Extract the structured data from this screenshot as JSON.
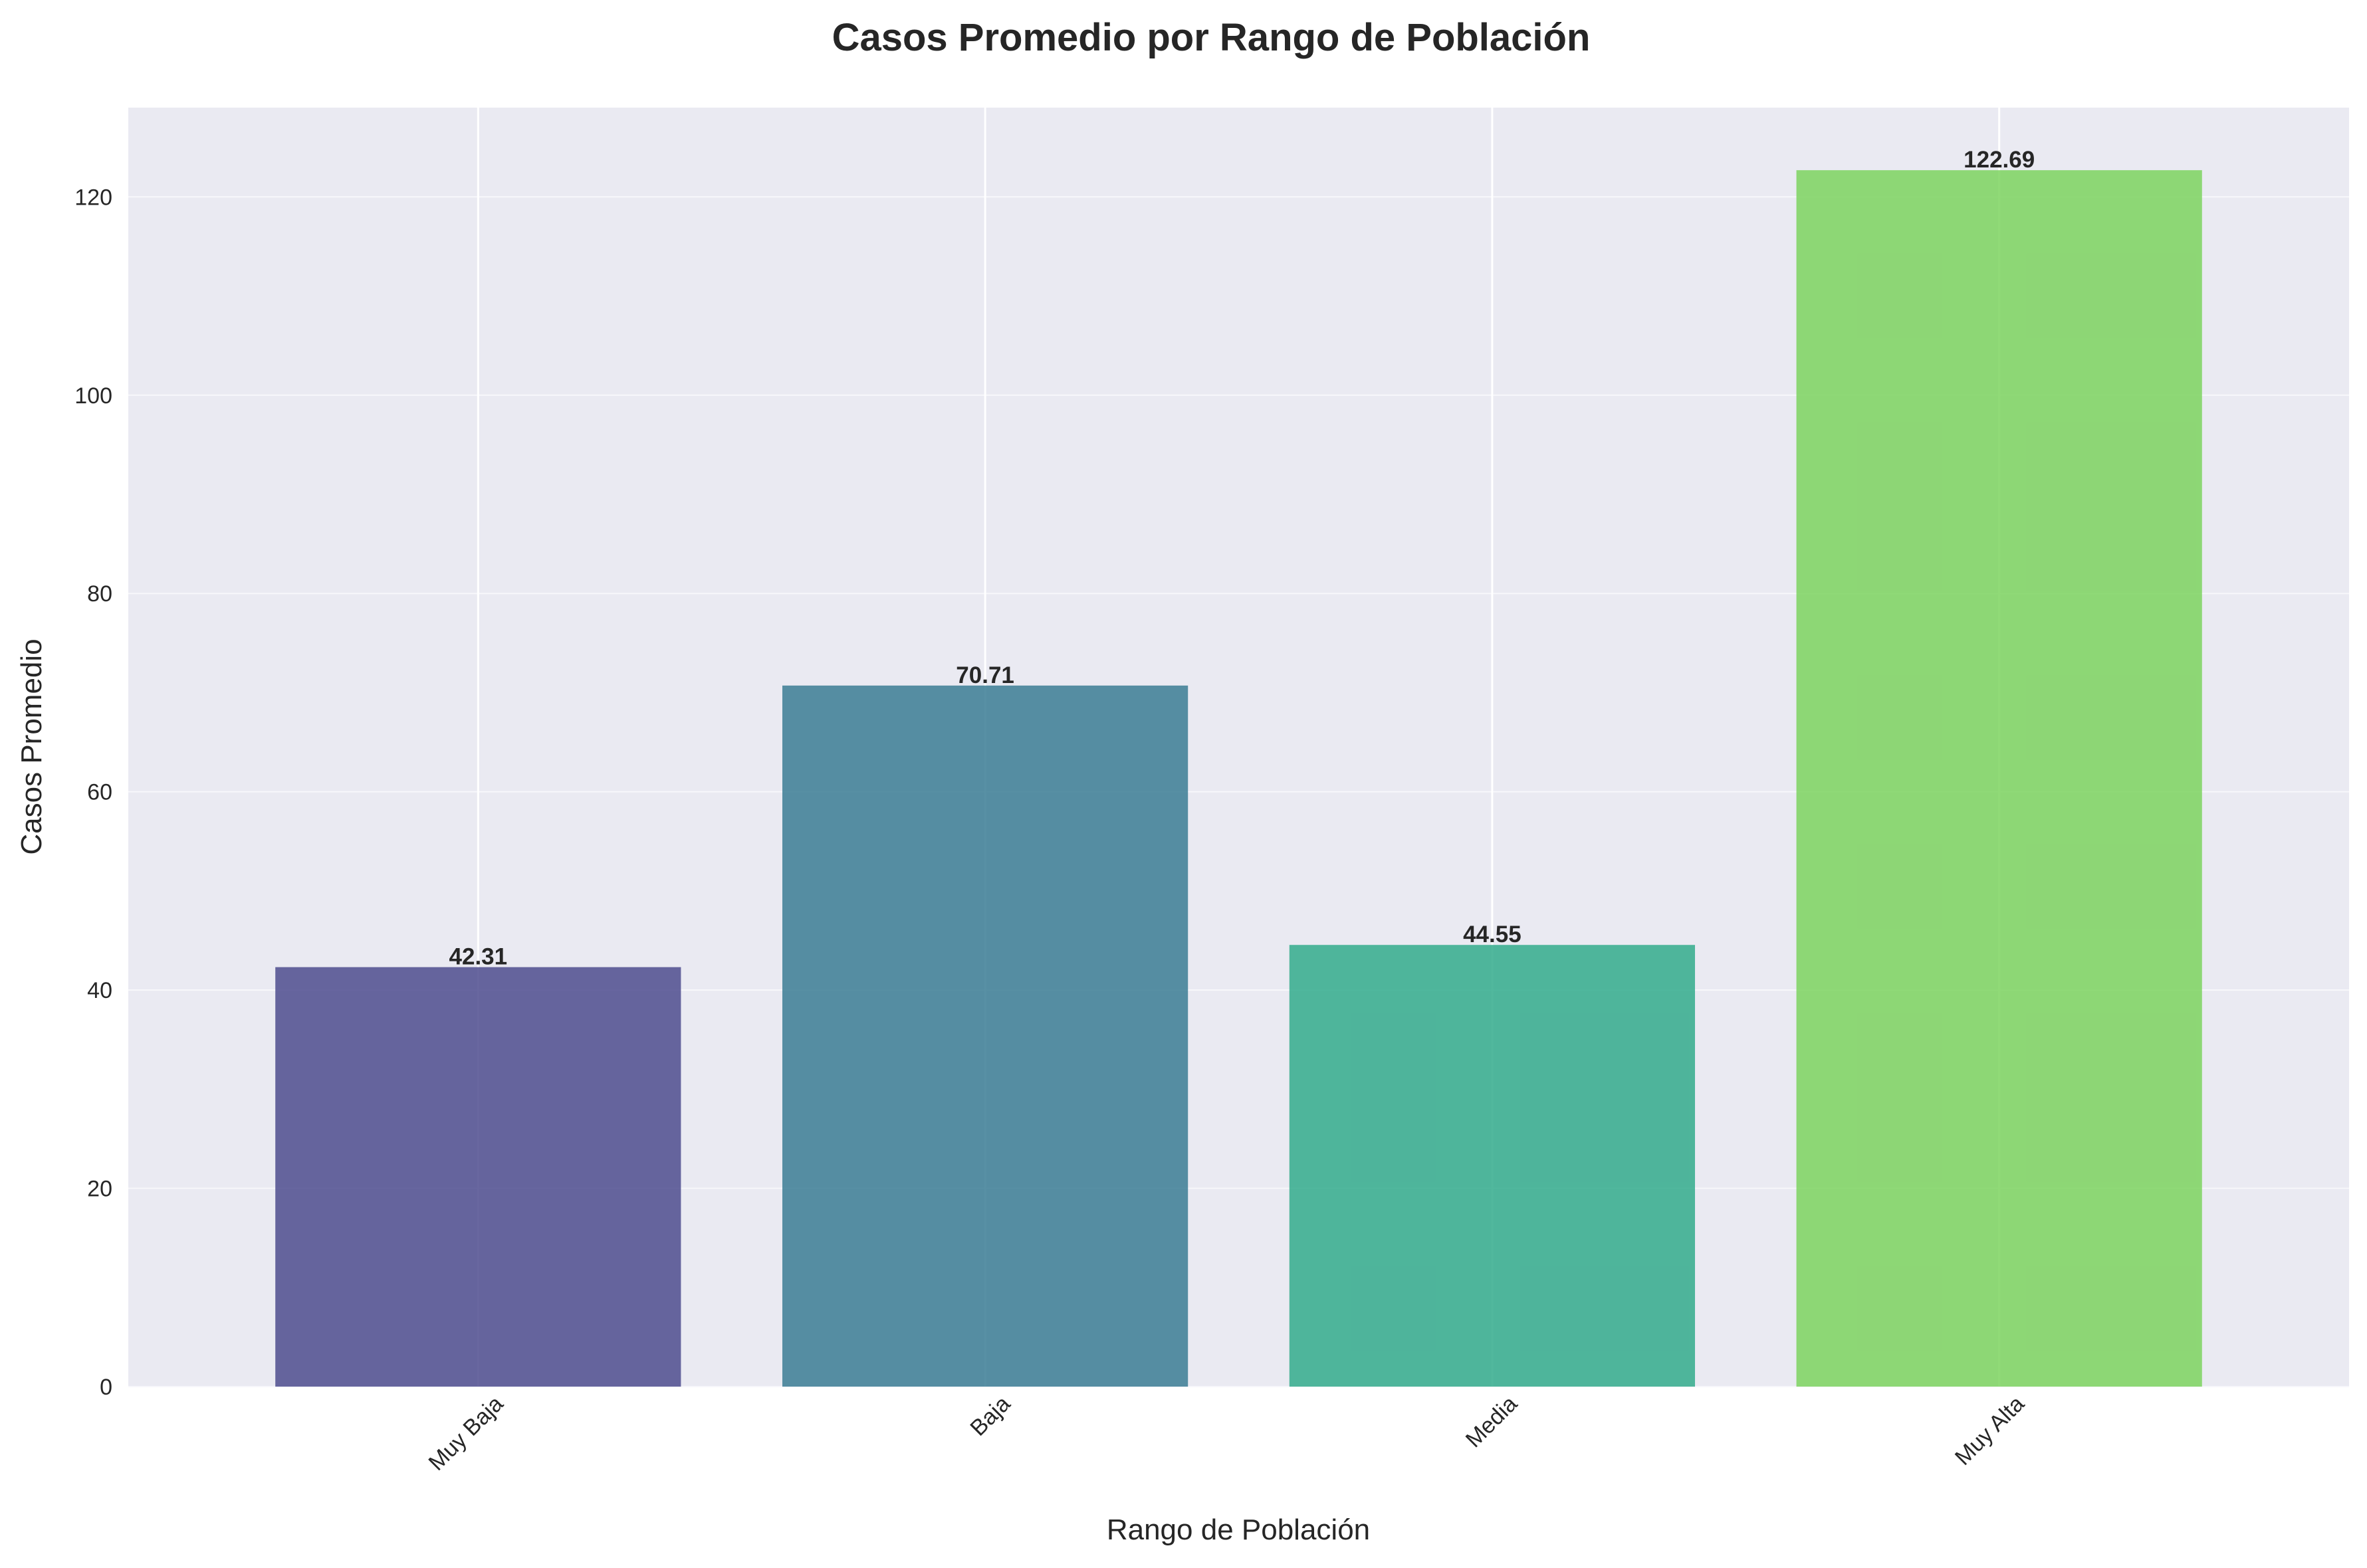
{
  "chart_data": {
    "type": "bar",
    "title": "Casos Promedio por Rango de Población",
    "xlabel": "Rango de Población",
    "ylabel": "Casos Promedio",
    "categories": [
      "Muy Baja",
      "Baja",
      "Media",
      "Muy Alta"
    ],
    "values": [
      42.31,
      70.71,
      44.55,
      122.69
    ],
    "value_labels": [
      "42.31",
      "70.71",
      "44.55",
      "122.69"
    ],
    "colors": [
      "#4e4c8e",
      "#3b7d94",
      "#33ab8c",
      "#7dd35f"
    ],
    "ylim": [
      0,
      129
    ],
    "yticks": [
      0,
      20,
      40,
      60,
      80,
      100,
      120
    ],
    "x_tick_rotation": "45 degrees",
    "grid": true,
    "legend": "none",
    "background": "#eaeaf2"
  }
}
